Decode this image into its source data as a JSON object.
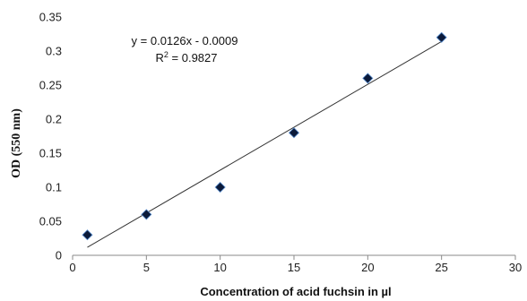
{
  "chart_data": {
    "type": "scatter",
    "title": "",
    "xlabel": "Concentration of acid fuchsin in µl",
    "ylabel": "OD (550 nm)",
    "xlim": [
      0,
      30
    ],
    "ylim": [
      0,
      0.35
    ],
    "x_ticks": [
      0,
      5,
      10,
      15,
      20,
      25,
      30
    ],
    "y_ticks": [
      0,
      0.05,
      0.1,
      0.15,
      0.2,
      0.25,
      0.3,
      0.35
    ],
    "x_tick_labels": [
      "0",
      "5",
      "10",
      "15",
      "20",
      "25",
      "30"
    ],
    "y_tick_labels": [
      "0",
      "0.05",
      "0.1",
      "0.15",
      "0.2",
      "0.25",
      "0.3",
      "0.35"
    ],
    "grid": false,
    "legend": "none",
    "series": [
      {
        "marker": "diamond",
        "color": "#0b1a3a",
        "x": [
          1,
          5,
          10,
          15,
          20,
          25
        ],
        "y": [
          0.03,
          0.06,
          0.1,
          0.18,
          0.26,
          0.32
        ]
      }
    ],
    "trendline": {
      "slope": 0.0126,
      "intercept": -0.0009,
      "x_range": [
        1,
        25
      ],
      "color": "#333333"
    },
    "annotations": {
      "equation": "y = 0.0126x - 0.0009",
      "r2_prefix": "R",
      "r2_sup": "2",
      "r2_value": " = 0.9827"
    }
  }
}
